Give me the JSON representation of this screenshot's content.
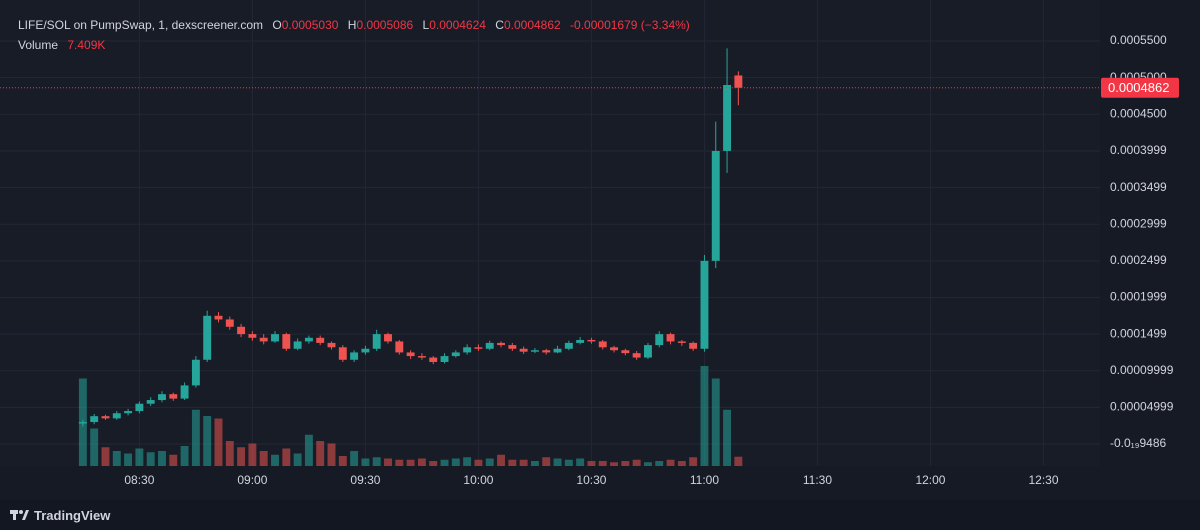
{
  "chart_data": {
    "type": "candlestick",
    "header": {
      "symbol": "LIFE/SOL on PumpSwap, 1, dexscreener.com",
      "open": {
        "key": "O",
        "value": 0.000503,
        "label": "0.0005030"
      },
      "high": {
        "key": "H",
        "value": 0.0005086,
        "label": "0.0005086"
      },
      "low": {
        "key": "L",
        "value": 0.0004624,
        "label": "0.0004624"
      },
      "close": {
        "key": "C",
        "value": 0.0004862,
        "label": "0.0004862"
      },
      "change": {
        "value": -1.679e-05,
        "label": "-0.00001679 (−3.34%)"
      },
      "volume": {
        "key": "Volume",
        "value": 7409,
        "label": "7.409K"
      }
    },
    "x": [
      495,
      498,
      501,
      504,
      507,
      510,
      513,
      516,
      519,
      522,
      525,
      528,
      531,
      534,
      537,
      540,
      543,
      546,
      549,
      552,
      555,
      558,
      561,
      564,
      567,
      570,
      573,
      576,
      579,
      582,
      585,
      588,
      591,
      594,
      597,
      600,
      603,
      606,
      609,
      612,
      615,
      618,
      621,
      624,
      627,
      630,
      633,
      636,
      639,
      642,
      645,
      648,
      651,
      654,
      657,
      660,
      663,
      666,
      669
    ],
    "open": [
      2.8e-05,
      3e-05,
      3.8e-05,
      3.5e-05,
      4.2e-05,
      4.5e-05,
      5.5e-05,
      6e-05,
      6.8e-05,
      6.2e-05,
      8e-05,
      0.000115,
      0.000175,
      0.00017,
      0.00016,
      0.00015,
      0.000145,
      0.00014,
      0.00015,
      0.00013,
      0.00014,
      0.000145,
      0.000138,
      0.000132,
      0.000115,
      0.000125,
      0.00013,
      0.00015,
      0.00014,
      0.000125,
      0.00012,
      0.000118,
      0.000112,
      0.00012,
      0.000125,
      0.000132,
      0.00013,
      0.000138,
      0.000135,
      0.00013,
      0.000126,
      0.000128,
      0.000125,
      0.00013,
      0.000138,
      0.000142,
      0.00014,
      0.000132,
      0.000128,
      0.000124,
      0.000118,
      0.000135,
      0.00015,
      0.00014,
      0.000138,
      0.00013,
      0.00025,
      0.0004,
      0.000503
    ],
    "high": [
      3.3e-05,
      4.1e-05,
      4e-05,
      4.5e-05,
      4.8e-05,
      5.8e-05,
      6.4e-05,
      7.2e-05,
      7e-05,
      8.4e-05,
      0.00012,
      0.000182,
      0.00018,
      0.000174,
      0.000164,
      0.000154,
      0.00015,
      0.000154,
      0.000152,
      0.000144,
      0.000148,
      0.000148,
      0.00014,
      0.000135,
      0.000128,
      0.000134,
      0.000156,
      0.000152,
      0.000142,
      0.000128,
      0.000124,
      0.00012,
      0.000124,
      0.000128,
      0.000136,
      0.000136,
      0.000141,
      0.00014,
      0.000138,
      0.000133,
      0.000131,
      0.00013,
      0.000134,
      0.000141,
      0.000146,
      0.000145,
      0.000142,
      0.000134,
      0.00013,
      0.000127,
      0.000138,
      0.000154,
      0.000152,
      0.000142,
      0.00014,
      0.000258,
      0.00044,
      0.00054,
      0.0005086
    ],
    "low": [
      2.4e-05,
      2.7e-05,
      3.3e-05,
      3.3e-05,
      3.9e-05,
      4.2e-05,
      5.2e-05,
      5.7e-05,
      5.9e-05,
      6e-05,
      7.7e-05,
      0.000112,
      0.000166,
      0.000156,
      0.000146,
      0.000141,
      0.000136,
      0.000138,
      0.000127,
      0.000128,
      0.000137,
      0.000135,
      0.000129,
      0.000112,
      0.000112,
      0.000122,
      0.000127,
      0.000137,
      0.000122,
      0.000116,
      0.000115,
      0.000109,
      0.00011,
      0.000118,
      0.000122,
      0.000127,
      0.000128,
      0.000132,
      0.000127,
      0.000123,
      0.000124,
      0.000122,
      0.000124,
      0.000128,
      0.000136,
      0.000137,
      0.000129,
      0.000125,
      0.000121,
      0.000115,
      0.000116,
      0.000132,
      0.000136,
      0.000134,
      0.000127,
      0.000126,
      0.00024,
      0.00037,
      0.0004624
    ],
    "close": [
      3e-05,
      3.8e-05,
      3.5e-05,
      4.2e-05,
      4.5e-05,
      5.5e-05,
      6e-05,
      6.8e-05,
      6.2e-05,
      8e-05,
      0.000115,
      0.000175,
      0.00017,
      0.00016,
      0.00015,
      0.000145,
      0.00014,
      0.00015,
      0.00013,
      0.00014,
      0.000145,
      0.000138,
      0.000132,
      0.000115,
      0.000125,
      0.00013,
      0.00015,
      0.00014,
      0.000125,
      0.00012,
      0.000118,
      0.000112,
      0.00012,
      0.000125,
      0.000132,
      0.00013,
      0.000138,
      0.000135,
      0.00013,
      0.000126,
      0.000128,
      0.000125,
      0.00013,
      0.000138,
      0.000142,
      0.00014,
      0.000132,
      0.000128,
      0.000124,
      0.000118,
      0.000135,
      0.00015,
      0.00014,
      0.000138,
      0.00013,
      0.00025,
      0.0004,
      0.00049,
      0.0004862
    ],
    "volume": [
      70000,
      30000,
      15000,
      12000,
      10000,
      14000,
      11000,
      12000,
      9000,
      16000,
      45000,
      40000,
      38000,
      20000,
      15000,
      18000,
      12000,
      9000,
      14000,
      10000,
      25000,
      20000,
      18000,
      8000,
      12000,
      6000,
      7000,
      6000,
      5000,
      5000,
      6000,
      4000,
      5000,
      6000,
      7000,
      5000,
      6000,
      9000,
      5000,
      5000,
      4000,
      7000,
      6000,
      5000,
      6000,
      4000,
      4000,
      3000,
      4000,
      5000,
      3000,
      4000,
      5000,
      4000,
      7000,
      80000,
      70000,
      45000,
      7409
    ],
    "up_color": "#26a69a",
    "down_color": "#ef5350",
    "xlim": [
      473,
      765
    ],
    "xticks": [
      {
        "value": 510,
        "label": "08:30"
      },
      {
        "value": 540,
        "label": "09:00"
      },
      {
        "value": 570,
        "label": "09:30"
      },
      {
        "value": 600,
        "label": "10:00"
      },
      {
        "value": 630,
        "label": "10:30"
      },
      {
        "value": 660,
        "label": "11:00"
      },
      {
        "value": 690,
        "label": "11:30"
      },
      {
        "value": 720,
        "label": "12:00"
      },
      {
        "value": 750,
        "label": "12:30"
      }
    ],
    "ylim": [
      -3e-05,
      0.000606
    ],
    "yticks": [
      {
        "value": -9.486e-20,
        "label": "-0.0₁₉9486"
      },
      4.999e-05,
      9.999e-05,
      0.0001499,
      0.0001999,
      0.0002499,
      0.0002999,
      0.0003499,
      0.0003999,
      {
        "value": 0.00045,
        "label": "0.0004500"
      },
      {
        "value": 0.0005,
        "label": "0.0005000"
      },
      {
        "value": 0.00055,
        "label": "0.0005500"
      }
    ],
    "grid": true
  },
  "footer": {
    "brand": "TradingView"
  }
}
